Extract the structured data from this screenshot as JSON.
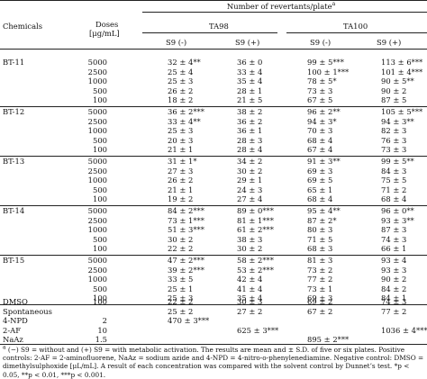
{
  "header": {
    "chemicals": "Chemicals",
    "doses_line1": "Doses",
    "doses_line2": "[μg/mL]",
    "number_of_revertants": "Number of revertants/plate",
    "number_sup": "a",
    "strain_ta98": "TA98",
    "strain_ta100": "TA100",
    "s9_minus": "S9 (-)",
    "s9_plus": "S9 (+)"
  },
  "groups": [
    {
      "chemical": "BT-11",
      "rows": [
        {
          "dose": "5000",
          "ta98_m": "32 ± 4**",
          "ta98_p": "36 ± 0",
          "ta100_m": "99 ± 5***",
          "ta100_p": "113 ± 6***"
        },
        {
          "dose": "2500",
          "ta98_m": "25 ± 4",
          "ta98_p": "33 ± 4",
          "ta100_m": "100 ± 1***",
          "ta100_p": "101 ± 4***"
        },
        {
          "dose": "1000",
          "ta98_m": "25 ± 3",
          "ta98_p": "35 ± 4",
          "ta100_m": "78 ± 5*",
          "ta100_p": "90 ± 5**"
        },
        {
          "dose": "500",
          "ta98_m": "26 ± 2",
          "ta98_p": "28 ± 1",
          "ta100_m": "73 ± 3",
          "ta100_p": "90 ± 2"
        },
        {
          "dose": "100",
          "ta98_m": "18 ± 2",
          "ta98_p": "21 ± 5",
          "ta100_m": "67 ± 5",
          "ta100_p": "87 ± 5"
        }
      ]
    },
    {
      "chemical": "BT-12",
      "rows": [
        {
          "dose": "5000",
          "ta98_m": "36 ± 2***",
          "ta98_p": "38 ± 2",
          "ta100_m": "96 ± 2**",
          "ta100_p": "105 ± 5***"
        },
        {
          "dose": "2500",
          "ta98_m": "33 ± 4**",
          "ta98_p": "36 ± 2",
          "ta100_m": "94 ± 3*",
          "ta100_p": "94 ± 3**"
        },
        {
          "dose": "1000",
          "ta98_m": "25 ± 3",
          "ta98_p": "36 ± 1",
          "ta100_m": "70 ± 3",
          "ta100_p": "82 ± 3"
        },
        {
          "dose": "500",
          "ta98_m": "20 ± 3",
          "ta98_p": "28 ± 3",
          "ta100_m": "68 ± 4",
          "ta100_p": "76 ± 3"
        },
        {
          "dose": "100",
          "ta98_m": "21 ± 1",
          "ta98_p": "28 ± 4",
          "ta100_m": "67 ± 4",
          "ta100_p": "73 ± 3"
        }
      ]
    },
    {
      "chemical": "BT-13",
      "rows": [
        {
          "dose": "5000",
          "ta98_m": "31 ± 1*",
          "ta98_p": "34 ± 2",
          "ta100_m": "91 ± 3**",
          "ta100_p": "99 ± 5**"
        },
        {
          "dose": "2500",
          "ta98_m": "27 ± 3",
          "ta98_p": "30 ± 2",
          "ta100_m": "69 ± 3",
          "ta100_p": "84 ± 3"
        },
        {
          "dose": "1000",
          "ta98_m": "26 ± 2",
          "ta98_p": "29 ± 1",
          "ta100_m": "69 ± 5",
          "ta100_p": "75 ± 5"
        },
        {
          "dose": "500",
          "ta98_m": "21 ± 1",
          "ta98_p": "24 ± 3",
          "ta100_m": "65 ± 1",
          "ta100_p": "71 ± 2"
        },
        {
          "dose": "100",
          "ta98_m": "19 ± 2",
          "ta98_p": "27 ± 4",
          "ta100_m": "68 ± 4",
          "ta100_p": "68 ± 4"
        }
      ]
    },
    {
      "chemical": "BT-14",
      "rows": [
        {
          "dose": "5000",
          "ta98_m": "84 ± 2***",
          "ta98_p": "89 ± 0***",
          "ta100_m": "95 ± 4**",
          "ta100_p": "96 ± 0**"
        },
        {
          "dose": "2500",
          "ta98_m": "73 ± 1***",
          "ta98_p": "81 ± 1***",
          "ta100_m": "87 ± 2*",
          "ta100_p": "93 ± 3**"
        },
        {
          "dose": "1000",
          "ta98_m": "51 ± 3***",
          "ta98_p": "61 ± 2***",
          "ta100_m": "80 ± 3",
          "ta100_p": "87 ± 3"
        },
        {
          "dose": "500",
          "ta98_m": "30 ± 2",
          "ta98_p": "38 ± 3",
          "ta100_m": "71 ± 5",
          "ta100_p": "74 ± 3"
        },
        {
          "dose": "100",
          "ta98_m": "22 ± 2",
          "ta98_p": "30 ± 2",
          "ta100_m": "68 ± 3",
          "ta100_p": "66 ± 1"
        }
      ]
    },
    {
      "chemical": "BT-15",
      "rows": [
        {
          "dose": "5000",
          "ta98_m": "47 ± 2***",
          "ta98_p": "58 ± 2***",
          "ta100_m": "81 ± 3",
          "ta100_p": "93 ± 4"
        },
        {
          "dose": "2500",
          "ta98_m": "39 ± 2***",
          "ta98_p": "53 ± 2***",
          "ta100_m": "73 ± 2",
          "ta100_p": "93 ± 3"
        },
        {
          "dose": "1000",
          "ta98_m": "33 ± 5",
          "ta98_p": "42 ± 4",
          "ta100_m": "77 ± 2",
          "ta100_p": "90 ± 2"
        },
        {
          "dose": "500",
          "ta98_m": "25 ± 1",
          "ta98_p": "41 ± 4",
          "ta100_m": "73 ± 1",
          "ta100_p": "84 ± 2"
        },
        {
          "dose": "100",
          "ta98_m": "25 ± 3",
          "ta98_p": "35 ± 4",
          "ta100_m": "69 ± 3",
          "ta100_p": "84 ± 1"
        }
      ]
    }
  ],
  "controls": [
    {
      "chemical": "DMSO",
      "dose": "100",
      "ta98_m": "22 ± 2",
      "ta98_p": "30 ± 3",
      "ta100_m": "69 ± 2",
      "ta100_p": "74 ± 3"
    },
    {
      "chemical": "Spontaneous",
      "dose": "",
      "ta98_m": "25 ± 2",
      "ta98_p": "27 ± 2",
      "ta100_m": "67 ± 2",
      "ta100_p": "77 ± 2"
    },
    {
      "chemical": "4-NPD",
      "dose": "2",
      "ta98_m": "470 ± 3***",
      "ta98_p": "",
      "ta100_m": "",
      "ta100_p": ""
    },
    {
      "chemical": "2-AF",
      "dose": "10",
      "ta98_m": "",
      "ta98_p": "625 ± 3***",
      "ta100_m": "",
      "ta100_p": "1036 ± 4***"
    },
    {
      "chemical": "NaAz",
      "dose": "1.5",
      "ta98_m": "",
      "ta98_p": "",
      "ta100_m": "895 ± 2***",
      "ta100_p": ""
    }
  ],
  "footnote": {
    "mark": "a",
    "text": "(−) S9 = without and (+) S9 = with metabolic activation. The results are mean and ± S.D. of five or six plates. Positive controls: 2-AF = 2-aminofluorene, NaAz = sodium azide and 4-NPD = 4-nitro-o-phenylenediamine. Negative control: DMSO = dimethylsulphoxide [μL/mL]. A result of each concentration was compared with the solvent control by Dunnet’s test. *p < 0.05, **p < 0.01, ***p < 0.001."
  }
}
